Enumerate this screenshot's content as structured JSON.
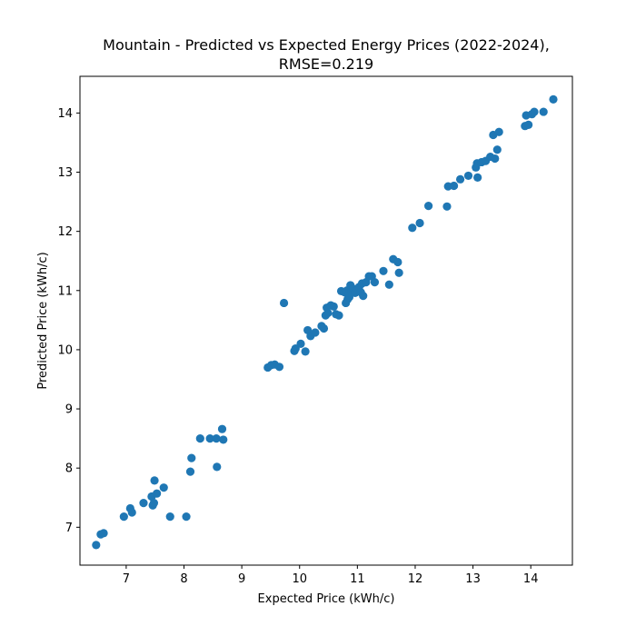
{
  "chart_data": {
    "type": "scatter",
    "title_line1": "Mountain - Predicted vs Expected Energy Prices (2022-2024),",
    "title_line2": "RMSE=0.219",
    "xlabel": "Expected Price (kWh/c)",
    "ylabel": "Predicted Price (kWh/c)",
    "xlim": [
      6.2,
      14.72
    ],
    "ylim": [
      6.36,
      14.62
    ],
    "xticks": [
      7,
      8,
      9,
      10,
      11,
      12,
      13,
      14
    ],
    "yticks": [
      7,
      8,
      9,
      10,
      11,
      12,
      13,
      14
    ],
    "grid": false,
    "marker_color": "#1f77b4",
    "points": [
      [
        6.48,
        6.7
      ],
      [
        6.56,
        6.88
      ],
      [
        6.61,
        6.9
      ],
      [
        6.96,
        7.18
      ],
      [
        7.07,
        7.32
      ],
      [
        7.1,
        7.25
      ],
      [
        7.3,
        7.41
      ],
      [
        7.44,
        7.52
      ],
      [
        7.46,
        7.37
      ],
      [
        7.48,
        7.41
      ],
      [
        7.49,
        7.79
      ],
      [
        7.53,
        7.57
      ],
      [
        7.65,
        7.67
      ],
      [
        7.76,
        7.18
      ],
      [
        8.04,
        7.18
      ],
      [
        8.11,
        7.94
      ],
      [
        8.13,
        8.17
      ],
      [
        8.28,
        8.5
      ],
      [
        8.45,
        8.5
      ],
      [
        8.56,
        8.5
      ],
      [
        8.57,
        8.02
      ],
      [
        8.66,
        8.66
      ],
      [
        8.68,
        8.48
      ],
      [
        9.45,
        9.7
      ],
      [
        9.51,
        9.74
      ],
      [
        9.57,
        9.75
      ],
      [
        9.65,
        9.71
      ],
      [
        9.73,
        10.79
      ],
      [
        9.91,
        9.98
      ],
      [
        9.93,
        10.02
      ],
      [
        10.02,
        10.1
      ],
      [
        10.1,
        9.97
      ],
      [
        10.14,
        10.33
      ],
      [
        10.19,
        10.23
      ],
      [
        10.27,
        10.29
      ],
      [
        10.38,
        10.4
      ],
      [
        10.42,
        10.36
      ],
      [
        10.45,
        10.58
      ],
      [
        10.47,
        10.71
      ],
      [
        10.49,
        10.62
      ],
      [
        10.54,
        10.75
      ],
      [
        10.59,
        10.73
      ],
      [
        10.63,
        10.6
      ],
      [
        10.68,
        10.58
      ],
      [
        10.72,
        10.99
      ],
      [
        10.78,
        10.97
      ],
      [
        10.8,
        10.79
      ],
      [
        10.82,
        11.0
      ],
      [
        10.83,
        10.85
      ],
      [
        10.86,
        10.89
      ],
      [
        10.88,
        11.09
      ],
      [
        10.9,
        10.98
      ],
      [
        10.93,
        11.03
      ],
      [
        10.96,
        10.96
      ],
      [
        11.0,
        11.02
      ],
      [
        11.03,
        11.06
      ],
      [
        11.06,
        10.97
      ],
      [
        11.08,
        11.12
      ],
      [
        11.1,
        10.91
      ],
      [
        11.15,
        11.14
      ],
      [
        11.2,
        11.24
      ],
      [
        11.25,
        11.24
      ],
      [
        11.3,
        11.14
      ],
      [
        11.45,
        11.33
      ],
      [
        11.55,
        11.1
      ],
      [
        11.62,
        11.53
      ],
      [
        11.7,
        11.48
      ],
      [
        11.72,
        11.3
      ],
      [
        11.95,
        12.06
      ],
      [
        12.08,
        12.14
      ],
      [
        12.23,
        12.43
      ],
      [
        12.55,
        12.42
      ],
      [
        12.57,
        12.76
      ],
      [
        12.67,
        12.77
      ],
      [
        12.78,
        12.88
      ],
      [
        12.92,
        12.94
      ],
      [
        13.05,
        13.08
      ],
      [
        13.07,
        13.15
      ],
      [
        13.08,
        12.91
      ],
      [
        13.15,
        13.17
      ],
      [
        13.22,
        13.19
      ],
      [
        13.3,
        13.26
      ],
      [
        13.35,
        13.63
      ],
      [
        13.38,
        13.23
      ],
      [
        13.42,
        13.38
      ],
      [
        13.45,
        13.68
      ],
      [
        13.9,
        13.78
      ],
      [
        13.92,
        13.96
      ],
      [
        13.96,
        13.8
      ],
      [
        14.02,
        13.98
      ],
      [
        14.06,
        14.02
      ],
      [
        14.22,
        14.02
      ],
      [
        14.39,
        14.23
      ]
    ]
  }
}
